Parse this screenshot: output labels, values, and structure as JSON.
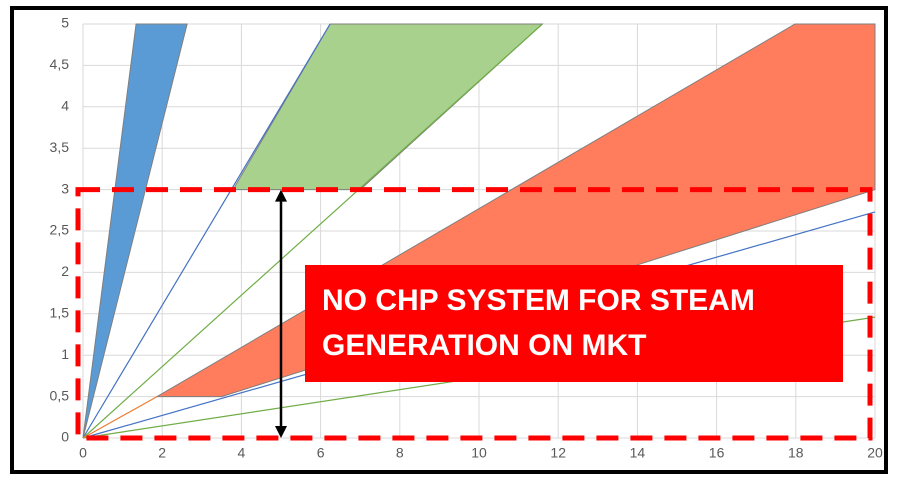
{
  "chart_data": {
    "type": "polygon",
    "xlim": [
      0,
      20
    ],
    "ylim": [
      0,
      5
    ],
    "xticks": [
      0,
      2,
      4,
      6,
      8,
      10,
      12,
      14,
      16,
      18,
      20
    ],
    "yticks": [
      0,
      {
        "value": 0.5,
        "label": "0,5"
      },
      1,
      {
        "value": 1.5,
        "label": "1,5"
      },
      2,
      {
        "value": 2.5,
        "label": "2,5"
      },
      3,
      {
        "value": 3.5,
        "label": "3,5"
      },
      4,
      {
        "value": 4.5,
        "label": "4,5"
      },
      5
    ],
    "grid": true,
    "series": [
      {
        "color": "#5b9bd5",
        "points": [
          [
            0,
            0
          ],
          [
            1.34,
            5
          ],
          [
            2.63,
            5
          ]
        ]
      },
      {
        "color": "#a9d18e",
        "points": [
          [
            3.79,
            3
          ],
          [
            6.24,
            5
          ],
          [
            11.6,
            5
          ],
          [
            7,
            3
          ]
        ]
      },
      {
        "color": "#ff7c5c",
        "points": [
          [
            1.87,
            0.5
          ],
          [
            17.98,
            5
          ],
          [
            20,
            5
          ],
          [
            20,
            3
          ],
          [
            3.5,
            0.5
          ]
        ]
      }
    ],
    "lines": [
      {
        "color": "#4472c4",
        "points": [
          [
            0,
            0
          ],
          [
            6.24,
            5
          ]
        ]
      },
      {
        "color": "#70ad47",
        "points": [
          [
            0,
            0
          ],
          [
            11.6,
            5
          ]
        ]
      },
      {
        "color": "#4472c4",
        "points": [
          [
            0,
            0
          ],
          [
            20,
            2.73
          ]
        ]
      },
      {
        "color": "#70ad47",
        "points": [
          [
            0,
            0
          ],
          [
            20,
            1.46
          ]
        ]
      },
      {
        "color": "#ed7d31",
        "points": [
          [
            0,
            0
          ],
          [
            1.87,
            0.5
          ]
        ]
      }
    ],
    "region": {
      "color": "#ff0000",
      "xlim": [
        0,
        20
      ],
      "ylim": [
        0,
        3
      ]
    },
    "arrow": {
      "x": 5,
      "ylim": [
        0,
        3
      ]
    },
    "annotation": [
      "NO CHP SYSTEM FOR STEAM",
      "GENERATION ON MKT"
    ]
  }
}
